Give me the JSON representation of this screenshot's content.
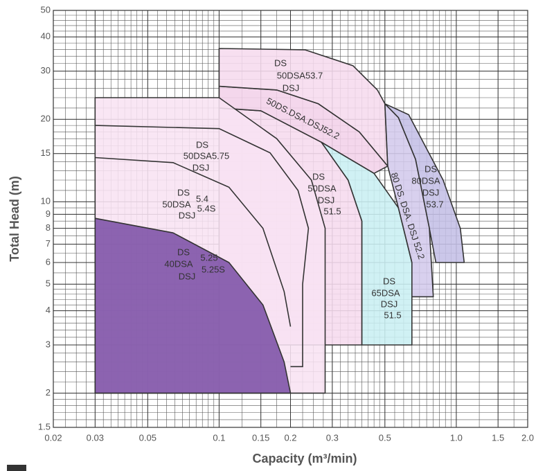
{
  "chart_data": {
    "type": "region",
    "x_label": "Capacity (m³/min)",
    "y_label": "Total Head (m)",
    "log_x": true,
    "log_y": true,
    "grid": true,
    "minor_grid": true,
    "xlim": [
      0.02,
      2.0
    ],
    "ylim": [
      1.5,
      50
    ],
    "xticks": [
      0.02,
      0.03,
      0.05,
      0.1,
      0.15,
      0.2,
      0.3,
      0.5,
      {
        "value": 1,
        "label": "1.0"
      },
      1.5,
      {
        "value": 2,
        "label": "2.0"
      }
    ],
    "yticks": [
      1.5,
      2,
      3,
      4,
      5,
      6,
      7,
      8,
      9,
      10,
      15,
      20,
      30,
      40,
      50
    ],
    "regions": [
      {
        "labels": [
          "DS",
          "50DSA",
          "DSJ",
          "51.5"
        ],
        "color": "#f6dbee",
        "x": [
          0.1,
          0.1,
          0.15,
          0.27,
          0.35,
          0.4,
          0.4
        ],
        "y": [
          3,
          22,
          21.5,
          16.5,
          12,
          8.5,
          3
        ]
      },
      {
        "labels": [
          "50DS.DSA.DSJ52.2"
        ],
        "color": "#f3d1e9",
        "x": [
          0.1,
          0.1,
          0.175,
          0.262,
          0.39,
          0.514,
          0.45,
          0.27,
          0.15
        ],
        "y": [
          22,
          26.4,
          25.6,
          22.8,
          18,
          13.5,
          12.7,
          16.5,
          21.5
        ]
      },
      {
        "labels": [
          "DS",
          "50DSA53.7",
          "DSJ"
        ],
        "color": "#f6dbee",
        "x": [
          0.1,
          0.1,
          0.23,
          0.367,
          0.465,
          0.5,
          0.514,
          0.39,
          0.262,
          0.175
        ],
        "y": [
          26.4,
          36.3,
          35.9,
          31.4,
          25.6,
          22.8,
          13.5,
          18,
          22.8,
          25.6
        ]
      },
      {
        "labels": [
          "DS",
          "50DSA5.75",
          "DSJ",
          "DS",
          "50DSA",
          "5.4",
          "5.4S",
          "DSJ"
        ],
        "color": "#f8e2f2",
        "x": [
          0.03,
          0.03,
          0.1,
          0.175,
          0.245,
          0.28,
          0.28
        ],
        "y": [
          2,
          24,
          24,
          17,
          12,
          8,
          2
        ]
      },
      {
        "labels": [
          "DS",
          "40DSA",
          "5.25",
          "5.25S",
          "DSJ"
        ],
        "color": "#7c51a6",
        "x": [
          0.03,
          0.03,
          0.064,
          0.11,
          0.153,
          0.188,
          0.2
        ],
        "y": [
          2,
          8.7,
          7.7,
          6,
          4.2,
          2.6,
          2
        ]
      },
      {
        "labels": [
          "DS",
          "65DSA",
          "DSJ",
          "51.5"
        ],
        "color": "#c9eff2",
        "x": [
          0.4,
          0.4,
          0.35,
          0.27,
          0.45,
          0.57,
          0.65,
          0.65
        ],
        "y": [
          3,
          8.5,
          12,
          16.5,
          12.7,
          9.5,
          6,
          3
        ]
      },
      {
        "labels": [
          "DS",
          "80DSA",
          "DSJ",
          "53.7"
        ],
        "color": "#c4bfe6",
        "x": [
          0.5,
          0.63,
          0.88,
          1.04,
          1.08,
          0.82,
          0.77,
          0.673,
          0.57
        ],
        "y": [
          22.8,
          20.8,
          12,
          8,
          6,
          6,
          8,
          14.3,
          20.3
        ]
      },
      {
        "labels": [
          "80 DS. DSA. DSJ 52.2"
        ],
        "color": "#d3caec",
        "x": [
          0.5,
          0.57,
          0.673,
          0.77,
          0.8,
          0.65,
          0.65,
          0.57,
          0.514
        ],
        "y": [
          22.8,
          20.3,
          14.3,
          8,
          4.5,
          4.5,
          6,
          9.5,
          13.5
        ]
      }
    ],
    "lines": [
      {
        "x": [
          0.03,
          0.1,
          0.164,
          0.215,
          0.238,
          0.225,
          0.225,
          0.2
        ],
        "y": [
          19,
          18.5,
          15.1,
          11,
          8,
          5,
          2.5,
          2.5
        ]
      },
      {
        "x": [
          0.03,
          0.064,
          0.11,
          0.153,
          0.188,
          0.2
        ],
        "y": [
          14.5,
          13.9,
          11.3,
          8,
          4.7,
          3.5
        ]
      }
    ]
  }
}
